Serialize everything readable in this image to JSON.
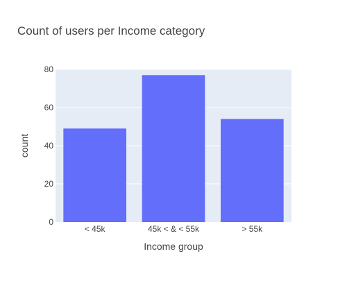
{
  "chart_data": {
    "type": "bar",
    "title": "Count of users per Income category",
    "xlabel": "Income group",
    "ylabel": "count",
    "categories": [
      "< 45k",
      "45k < & < 55k",
      "> 55k"
    ],
    "values": [
      49,
      77,
      54
    ],
    "ylim": [
      0,
      80
    ],
    "yticks": [
      0,
      20,
      40,
      60,
      80
    ],
    "grid": true,
    "legend": "none"
  },
  "colors": {
    "bar": "#636efa",
    "plot_bg": "#e5ecf6",
    "grid": "#ffffff",
    "text": "#444444"
  }
}
